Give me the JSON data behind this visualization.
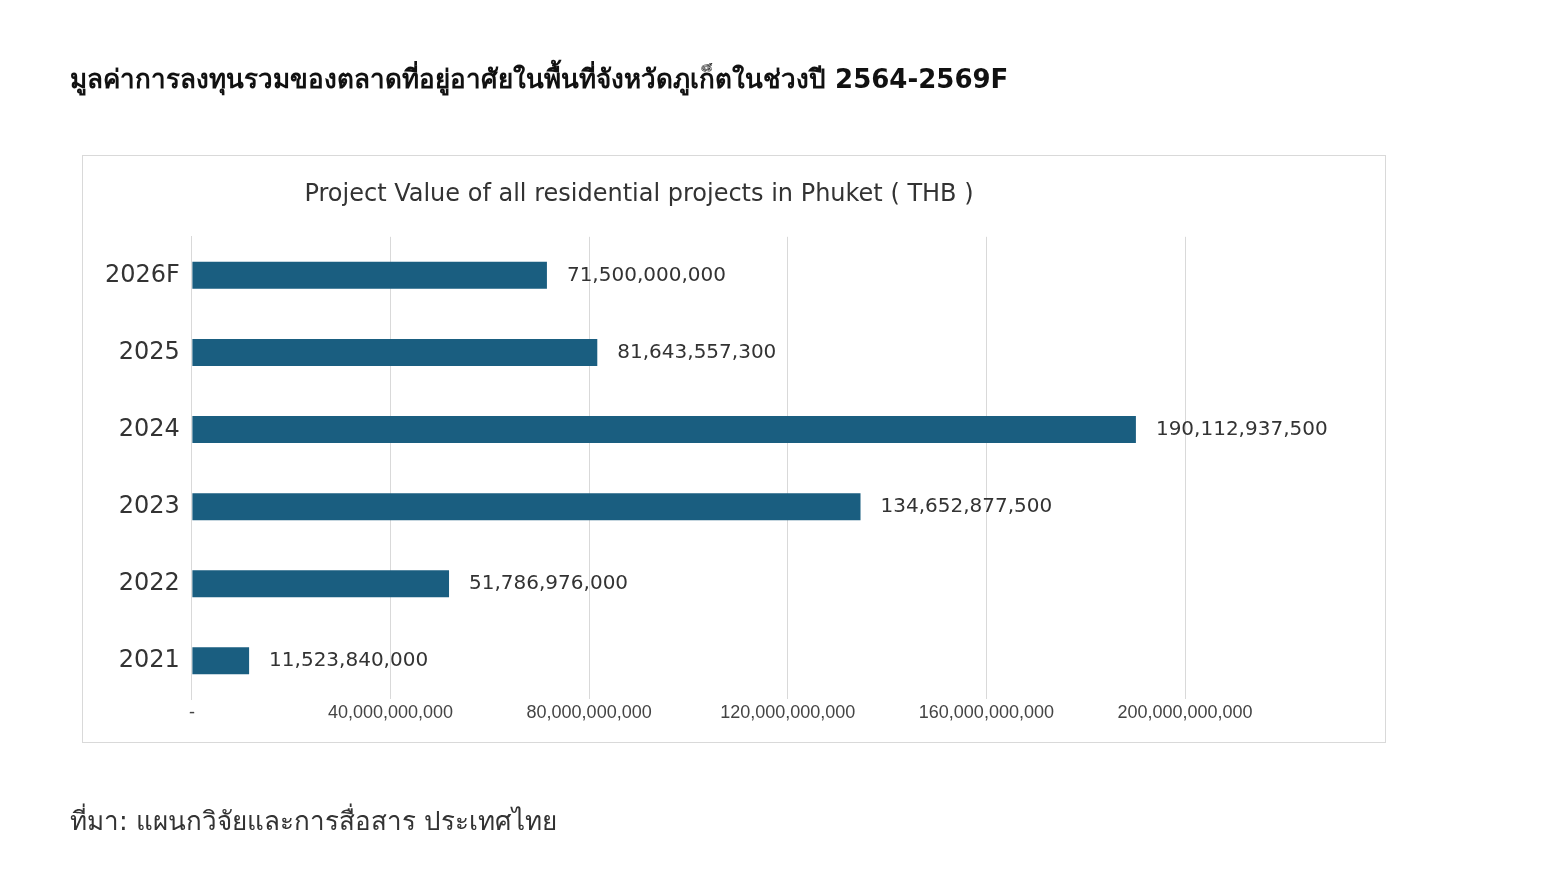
{
  "chart_data": {
    "type": "bar",
    "orientation": "horizontal",
    "title": "มูลค่าการลงทุนรวมของตลาดที่อยู่อาศัยในพื้นที่จังหวัดภูเก็ตในช่วงปี 2564-2569F",
    "subtitle": "Project Value of all residential projects in Phuket ( THB )",
    "categories": [
      "2026F",
      "2025",
      "2024",
      "2023",
      "2022",
      "2021"
    ],
    "values": [
      71500000000,
      81643557300,
      190112937500,
      134652877500,
      51786976000,
      11523840000
    ],
    "value_labels": [
      "71,500,000,000",
      "81,643,557,300",
      "190,112,937,500",
      "134,652,877,500",
      "51,786,976,000",
      "11,523,840,000"
    ],
    "color": "#1a5e80",
    "xlim": [
      0,
      200000000000
    ],
    "xticks": [
      {
        "value": 0,
        "label": "-"
      },
      {
        "value": 40000000000,
        "label": "40,000,000,000"
      },
      {
        "value": 80000000000,
        "label": "80,000,000,000"
      },
      {
        "value": 120000000000,
        "label": "120,000,000,000"
      },
      {
        "value": 160000000000,
        "label": "160,000,000,000"
      },
      {
        "value": 200000000000,
        "label": "200,000,000,000"
      }
    ],
    "grid": "x",
    "annotations": [
      "ที่มา: แผนกวิจัยและการสื่อสาร ประเทศไทย"
    ]
  }
}
